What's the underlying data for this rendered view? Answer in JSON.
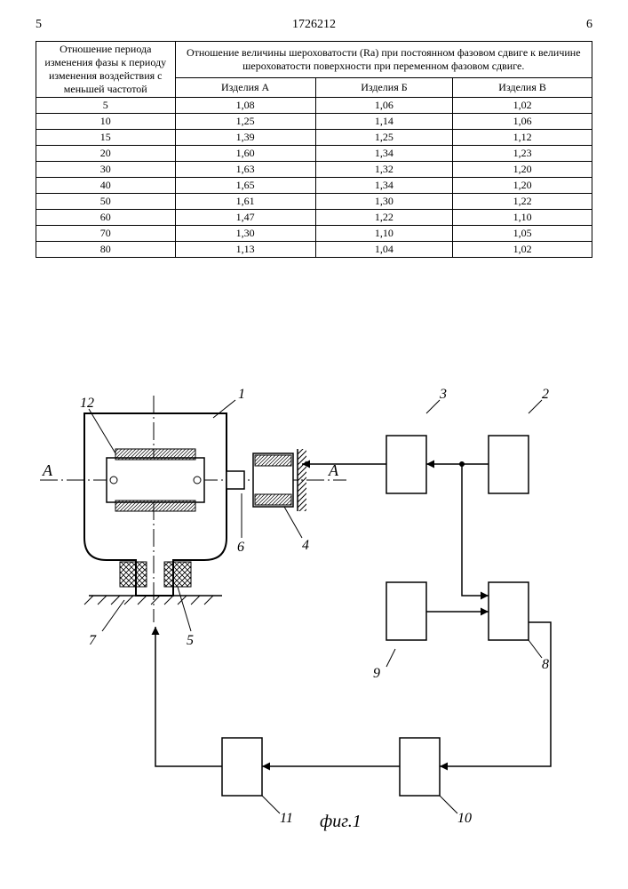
{
  "page": {
    "left_col_num": "5",
    "doc_num": "1726212",
    "right_col_num": "6"
  },
  "table": {
    "col1_header": "Отношение периода изменения фазы к периоду изменения воздействия с меньшей частотой",
    "col2_header_top": "Отношение величины шероховатости (Ra) при постоянном фазовом сдвиге к величине шероховатости поверхности при переменном фазовом сдвиге.",
    "col2a": "Изделия А",
    "col2b": "Изделия Б",
    "col2c": "Изделия В",
    "rows": [
      {
        "k": "5",
        "a": "1,08",
        "b": "1,06",
        "c": "1,02"
      },
      {
        "k": "10",
        "a": "1,25",
        "b": "1,14",
        "c": "1,06"
      },
      {
        "k": "15",
        "a": "1,39",
        "b": "1,25",
        "c": "1,12"
      },
      {
        "k": "20",
        "a": "1,60",
        "b": "1,34",
        "c": "1,23"
      },
      {
        "k": "30",
        "a": "1,63",
        "b": "1,32",
        "c": "1,20"
      },
      {
        "k": "40",
        "a": "1,65",
        "b": "1,34",
        "c": "1,20"
      },
      {
        "k": "50",
        "a": "1,61",
        "b": "1,30",
        "c": "1,22"
      },
      {
        "k": "60",
        "a": "1,47",
        "b": "1,22",
        "c": "1,10"
      },
      {
        "k": "70",
        "a": "1,30",
        "b": "1,10",
        "c": "1,05"
      },
      {
        "k": "80",
        "a": "1,13",
        "b": "1,04",
        "c": "1,02"
      }
    ]
  },
  "figure": {
    "caption": "фиг.1",
    "section_label_left": "А",
    "section_label_right": "А",
    "callouts": {
      "n1": "1",
      "n2": "2",
      "n3": "3",
      "n4": "4",
      "n5": "5",
      "n6": "6",
      "n7": "7",
      "n8": "8",
      "n9": "9",
      "n10": "10",
      "n11": "11",
      "n12": "12"
    },
    "colors": {
      "stroke": "#000000",
      "bg": "#ffffff",
      "hatch": "#000000"
    },
    "line_width": 1.5
  }
}
